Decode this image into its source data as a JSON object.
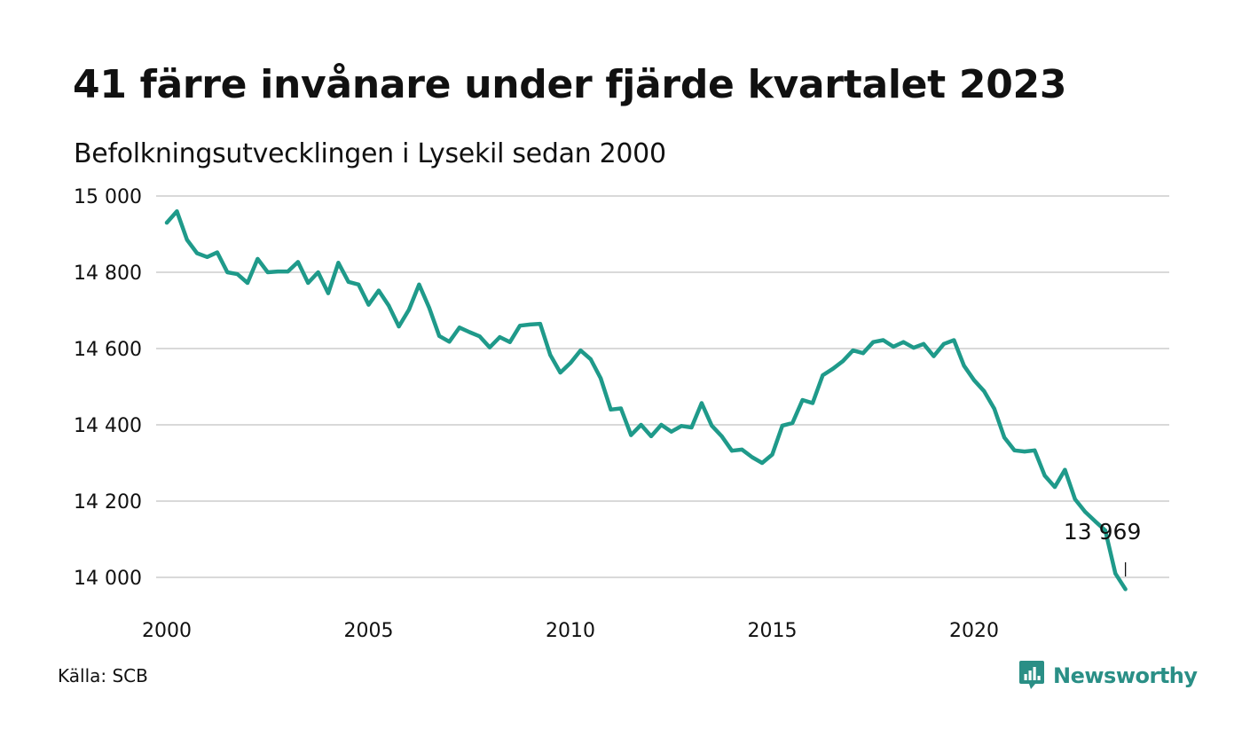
{
  "header": {
    "title": "41 färre invånare under fjärde kvartalet 2023",
    "subtitle": "Befolkningsutvecklingen i Lysekil sedan 2000"
  },
  "footer": {
    "source": "Källa: SCB",
    "brand": "Newsworthy"
  },
  "colors": {
    "line": "#1f9a8a",
    "grid": "#d9d9d9",
    "brand": "#2a8f86"
  },
  "chart_data": {
    "type": "line",
    "title": "41 färre invånare under fjärde kvartalet 2023",
    "subtitle": "Befolkningsutvecklingen i Lysekil sedan 2000",
    "xlabel": "",
    "ylabel": "",
    "x_ticks": [
      "2000",
      "2005",
      "2010",
      "2015",
      "2020"
    ],
    "y_ticks": [
      "14 000",
      "14 200",
      "14 400",
      "14 600",
      "14 800",
      "15 000"
    ],
    "xlim": [
      2000.0,
      2024.0
    ],
    "ylim": [
      13950,
      15000
    ],
    "grid": "horizontal",
    "annotation": {
      "x": 2023.75,
      "y": 13969,
      "label": "13 969"
    },
    "series": [
      {
        "x": [
          2000.0,
          2000.25,
          2000.5,
          2000.75,
          2001.0,
          2001.25,
          2001.5,
          2001.75,
          2002.0,
          2002.25,
          2002.5,
          2002.75,
          2003.0,
          2003.25,
          2003.5,
          2003.75,
          2004.0,
          2004.25,
          2004.5,
          2004.75,
          2005.0,
          2005.25,
          2005.5,
          2005.75,
          2006.0,
          2006.25,
          2006.5,
          2006.75,
          2007.0,
          2007.25,
          2007.5,
          2007.75,
          2008.0,
          2008.25,
          2008.5,
          2008.75,
          2009.0,
          2009.25,
          2009.5,
          2009.75,
          2010.0,
          2010.25,
          2010.5,
          2010.75,
          2011.0,
          2011.25,
          2011.5,
          2011.75,
          2012.0,
          2012.25,
          2012.5,
          2012.75,
          2013.0,
          2013.25,
          2013.5,
          2013.75,
          2014.0,
          2014.25,
          2014.5,
          2014.75,
          2015.0,
          2015.25,
          2015.5,
          2015.75,
          2016.0,
          2016.25,
          2016.5,
          2016.75,
          2017.0,
          2017.25,
          2017.5,
          2017.75,
          2018.0,
          2018.25,
          2018.5,
          2018.75,
          2019.0,
          2019.25,
          2019.5,
          2019.75,
          2020.0,
          2020.25,
          2020.5,
          2020.75,
          2021.0,
          2021.25,
          2021.5,
          2021.75,
          2022.0,
          2022.25,
          2022.5,
          2022.75,
          2023.0,
          2023.25,
          2023.5,
          2023.75
        ],
        "y": [
          14930,
          14960,
          14885,
          14850,
          14840,
          14852,
          14800,
          14795,
          14772,
          14835,
          14800,
          14802,
          14802,
          14827,
          14772,
          14800,
          14745,
          14825,
          14775,
          14768,
          14715,
          14752,
          14712,
          14658,
          14702,
          14768,
          14707,
          14633,
          14618,
          14655,
          14643,
          14632,
          14603,
          14630,
          14617,
          14660,
          14663,
          14665,
          14583,
          14537,
          14562,
          14595,
          14572,
          14522,
          14440,
          14443,
          14373,
          14400,
          14370,
          14400,
          14382,
          14397,
          14393,
          14457,
          14398,
          14370,
          14332,
          14335,
          14315,
          14300,
          14322,
          14398,
          14405,
          14465,
          14457,
          14530,
          14547,
          14567,
          14595,
          14588,
          14617,
          14622,
          14605,
          14617,
          14602,
          14612,
          14580,
          14612,
          14622,
          14555,
          14517,
          14488,
          14442,
          14367,
          14333,
          14330,
          14333,
          14267,
          14237,
          14282,
          14205,
          14172,
          14147,
          14123,
          14010,
          13969
        ]
      }
    ]
  }
}
